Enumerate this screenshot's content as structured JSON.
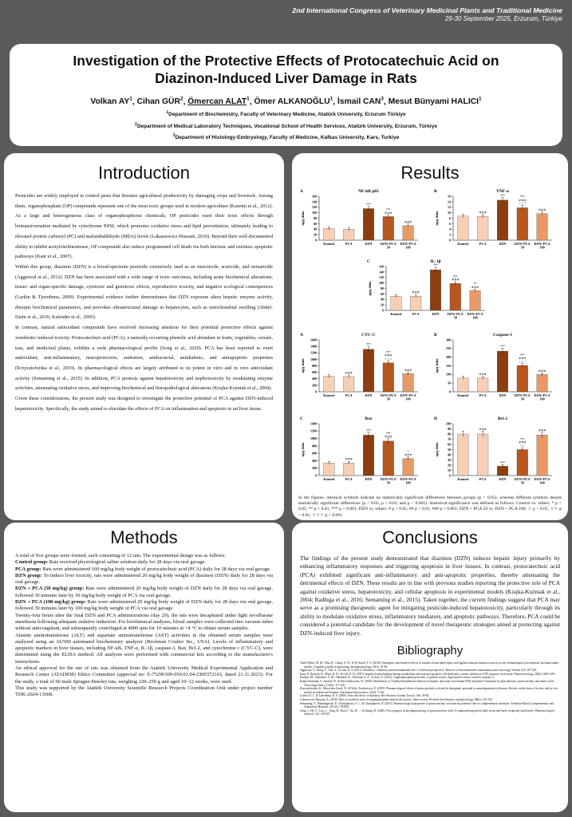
{
  "banner": {
    "line1": "2nd International Congress of Veterinary Medicinal Plants and Traditional Medicine",
    "line2": "29-30 September 2025, Erzurum, Türkiye"
  },
  "title": {
    "line1": "Investigation of the Protective Effects of Protocatechuic Acid on",
    "line2": "Diazinon-Induced Liver Damage in Rats"
  },
  "authors": [
    {
      "name": "Volkan AY",
      "sup": "1",
      "underline": false
    },
    {
      "name": "Cihan GÜR",
      "sup": "2",
      "underline": false
    },
    {
      "name": "Ömercan ALAT",
      "sup": "1",
      "underline": true
    },
    {
      "name": "Ömer ALKANOĞLU",
      "sup": "1",
      "underline": false
    },
    {
      "name": "İsmail CAN",
      "sup": "3",
      "underline": false
    },
    {
      "name": "Mesut Bünyami HALICI",
      "sup": "1",
      "underline": false
    }
  ],
  "affiliations": [
    {
      "sup": "1",
      "text": "Department of Biochemistry, Faculty of Veterinary Medicine, Atatürk University, Erzurum Türkiye"
    },
    {
      "sup": "2",
      "text": "Department of Medical Laboratory Techniques, Vocational School of Health Services, Atatürk University, Erzurum, Türkiye"
    },
    {
      "sup": "3",
      "text": "Department of Histology-Embryology, Faculty of Medicine, Kafkas University, Kars, Turkiye"
    }
  ],
  "introduction": {
    "heading": "Introduction",
    "paragraphs": [
      "Pesticides are widely employed to control pests that threaten agricultural productivity by damaging crops and livestock. Among them, organophosphate (OP) compounds represent one of the most toxic groups used in modern agriculture (Kazemi et al., 2012). As a large and heterogeneous class of organophosphorus chemicals, OP pesticides exert their toxic effects through biotransformation mediated by cytochrome P450, which promotes oxidative stress and lipid peroxidation, ultimately leading to elevated protein carbonyl (PC) and malondialdehyde (MDA) levels (Lukaszewicz-Hussain, 2010). Beyond their well-documented ability to inhibit acetylcholinesterase, OP compounds also induce programmed cell death via both intrinsic and extrinsic apoptotic pathways (Kaur et al., 2007).",
      "Within this group, diazinon (DZN) is a broad-spectrum pesticide extensively used as an insecticide, acaricide, and nematicide (Aggarwal et al., 2012). DZN has been associated with a wide range of toxic outcomes, including acute biochemical alterations, tissue- and organ-specific damage, cytotoxic and genotoxic effects, reproductive toxicity, and negative ecological consequences (Larkin & Tjeerdema, 2000). Experimental evidence further demonstrates that DZN exposure alters hepatic enzyme activity, disrupts biochemical parameters, and provokes ultrastructural damage in hepatocytes, such as mitochondrial swelling (Abdel-Daim et al., 2016; Kalender et al., 2005).",
      "In contrast, natural antioxidant compounds have received increasing attention for their potential protective effects against xenobiotic-induced toxicity. Protocatechuic acid (PCA), a naturally occurring phenolic acid abundant in fruits, vegetables, cereals, teas, and medicinal plants, exhibits a wide pharmacological profile (Song et al., 2020). PCA has been reported to exert antioxidant, anti-inflammatory, neuroprotective, antitumor, antibacterial, antidiabetic, and antiapoptotic properties (Krzysztoforska et al., 2019). Its pharmacological effects are largely attributed to its potent in vitro and in vivo antioxidant activity (Semaming et al., 2015). In addition, PCA protects against hepatotoxicity and nephrotoxicity by modulating enzyme activities, attenuating oxidative stress, and improving biochemical and histopathological alterations (Krajka-Kuźniak et al., 2004).",
      "Given these considerations, the present study was designed to investigate the protective potential of PCA against DZN-induced hepatotoxicity. Specifically, the study aimed to elucidate the effects of PCA on inflammation and apoptosis in rat liver tissue."
    ]
  },
  "methods": {
    "heading": "Methods",
    "intro": "A total of five groups were formed, each consisting of 12 rats. The experimental design was as follows:",
    "groups": [
      {
        "label": "Control group:",
        "text": "Rats received physiological saline solution daily for 28 days via oral gavage."
      },
      {
        "label": "PCA group:",
        "text": "Rats were administered 100 mg/kg body weight of protocatechuic acid (PCA) daily for 28 days via oral gavage."
      },
      {
        "label": "DZN group:",
        "text": "To induce liver toxicity, rats were administered 20 mg/kg body weight of diazinon (DZN) daily for 28 days via oral gavage."
      },
      {
        "label": "DZN + PCA (50 mg/kg) group:",
        "text": "Rats were administered 20 mg/kg body weight of DZN daily for 28 days via oral gavage, followed 30 minutes later by 50 mg/kg body weight of PCA via oral gavage."
      },
      {
        "label": "DZN + PCA (100 mg/kg) group:",
        "text": "Rats were administered 20 mg/kg body weight of DZN daily for 28 days via oral gavage, followed 30 minutes later by 100 mg/kg body weight of PCA via oral gavage."
      }
    ],
    "paragraphs": [
      "Twenty-four hours after the final DZN and PCA administrations (day 29), the rats were decapitated under light sevoflurane anesthesia following adequate sedative induction. For biochemical analyses, blood samples were collected into vacuum tubes without anticoagulant, and subsequently centrifuged at 4000 rpm for 10 minutes at +4 °C to obtain serum samples.",
      "Alanine aminotransferase (ALT) and aspartate aminotransferase (AST) activities in the obtained serum samples were analyzed using an AU500 automated biochemistry analyzer (Beckman Coulter Inc., USA). Levels of inflammatory and apoptotic markers in liver tissues, including NF-κB, TNF-α, IL-1β, caspase-3, Bax, Bcl-2, and cytochrome c (CYC-C), were determined using the ELISA method. All analyses were performed with commercial kits according to the manufacturer's instructions.",
      "An ethical approval for the use of rats was obtained from the Atatürk University Medical Experimental Application and Research Center (ATADEM) Ethics Committee (approval no: E-75296309-050.01.04-2300372163, dated 21.11.2023). For the study, a total of 60 male Sprague-Dawley rats, weighing 220–250 g and aged 10–12 weeks, were used.",
      "This study was supported by the Atatürk University Scientific Research Projects Coordination Unit under project number TDK-2024-13608."
    ]
  },
  "results": {
    "heading": "Results",
    "note": "In the figures, identical symbols indicate no statistically significant differences between groups (p > 0.05), whereas different symbols denote statistically significant differences (p < 0.05, p < 0.01, and p < 0.001). Statistical significance was defined as follows: Control vs. others: * p < 0.05, ** p < 0.01, *** p < 0.001; DZN vs. others: # p < 0.05, ## p < 0.01, ### p < 0.001; DZN + PCA 50 vs. DZN + PCA 100: ☆ p < 0.05, ☆☆ p < 0.01, ☆☆☆ p < 0.001."
  },
  "chart_data": [
    {
      "type": "bar",
      "panel": "A",
      "title": "NF-kB p65",
      "ylabel": "ng/g doku",
      "ylim": [
        0,
        160
      ],
      "yticks": [
        0,
        20,
        40,
        60,
        80,
        100,
        120,
        140,
        160
      ],
      "categories": [
        "Kontrol",
        "PCA",
        "DZN",
        "DZN+PCA 50",
        "DZN+PCA 100"
      ],
      "values": [
        43,
        40,
        115,
        86,
        53
      ],
      "annotations": [
        "",
        "",
        "***",
        "***\n###",
        "###"
      ]
    },
    {
      "type": "bar",
      "panel": "B",
      "title": "TNF-α",
      "ylabel": "ng/g doku",
      "ylim": [
        0,
        16
      ],
      "yticks": [
        0,
        2,
        4,
        6,
        8,
        10,
        12,
        14,
        16
      ],
      "categories": [
        "Kontrol",
        "PCA",
        "DZN",
        "DZN+PCA 50",
        "DZN+PCA 100"
      ],
      "values": [
        8.8,
        8.7,
        14.6,
        11.8,
        9.7
      ],
      "annotations": [
        "",
        "###",
        "***",
        "***\n###\n☆☆☆",
        "###"
      ]
    },
    {
      "type": "bar",
      "panel": "C",
      "title": "IL-1β",
      "ylabel": "pg/g doku",
      "ylim": [
        0,
        160
      ],
      "yticks": [
        0,
        20,
        40,
        60,
        80,
        100,
        120,
        140,
        160
      ],
      "categories": [
        "Kontrol",
        "PCA",
        "DZN",
        "DZN+PCA 50",
        "DZN+PCA 100"
      ],
      "values": [
        52,
        52,
        148,
        98,
        72
      ],
      "annotations": [
        "",
        "###",
        "***",
        "***\n###",
        "**\n###"
      ]
    },
    {
      "type": "bar",
      "panel": "A",
      "title": "CYC-C",
      "ylabel": "ng/g doku",
      "ylim": [
        0,
        1600
      ],
      "yticks": [
        0,
        200,
        400,
        600,
        800,
        1000,
        1200,
        1400,
        1600
      ],
      "categories": [
        "Kontrol",
        "PCA",
        "DZN",
        "DZN+PCA 50",
        "DZN+PCA 100"
      ],
      "values": [
        480,
        470,
        1310,
        890,
        560
      ],
      "annotations": [
        "",
        "###",
        "***",
        "***\n###\n☆☆☆",
        "###"
      ]
    },
    {
      "type": "bar",
      "panel": "B",
      "title": "Caspase-3",
      "ylabel": "ng/g doku",
      "ylim": [
        0,
        300
      ],
      "yticks": [
        0,
        50,
        100,
        150,
        200,
        250,
        300
      ],
      "categories": [
        "Kontrol",
        "PCA",
        "DZN",
        "DZN+PCA 50",
        "DZN+PCA 100"
      ],
      "values": [
        80,
        80,
        235,
        152,
        100
      ],
      "annotations": [
        "",
        "###",
        "***",
        "***\n###\n☆☆☆",
        "###"
      ]
    },
    {
      "type": "bar",
      "panel": "C",
      "title": "Bax",
      "ylabel": "ng/g doku",
      "ylim": [
        0,
        1400
      ],
      "yticks": [
        0,
        200,
        400,
        600,
        800,
        1000,
        1200,
        1400
      ],
      "categories": [
        "Kontrol",
        "PCA",
        "DZN",
        "DZN+PCA 50",
        "DZN+PCA 100"
      ],
      "values": [
        340,
        340,
        1090,
        930,
        460
      ],
      "annotations": [
        "",
        "###",
        "***",
        "***\n###",
        "*\n###"
      ]
    },
    {
      "type": "bar",
      "panel": "D",
      "title": "Bcl-2",
      "ylabel": "ng/g doku",
      "ylim": [
        0,
        100
      ],
      "yticks": [
        0,
        10,
        20,
        30,
        40,
        50,
        60,
        70,
        80,
        90,
        100
      ],
      "categories": [
        "Kontrol",
        "PCA",
        "DZN",
        "DZN+PCA 50",
        "DZN+PCA 100"
      ],
      "values": [
        80,
        80,
        18,
        50,
        78
      ],
      "annotations": [
        "",
        "###",
        "***",
        "***\n###\n☆☆",
        "###"
      ]
    }
  ],
  "colors": {
    "bars": [
      "#f6cfb4",
      "#f6cfb4",
      "#8b3f10",
      "#b7561f",
      "#e79a67"
    ],
    "page_bg": "#5b5b5b"
  },
  "conclusions": {
    "heading": "Conclusions",
    "text": "The findings of the present study demonstrated that diazinon (DZN) induces hepatic injury primarily by enhancing inflammatory responses and triggering apoptosis in liver tissues. In contrast, protocatechuic acid (PCA) exhibited significant anti-inflammatory and anti-apoptotic properties, thereby attenuating the detrimental effects of DZN. These results are in line with previous studies reporting the protective role of PCA against oxidative stress, hepatotoxicity, and cellular apoptosis in experimental models (Krajka-Kuźniak et al., 2004; Radhiga et al., 2016; Semaming et al., 2015). Taken together, the current findings suggest that PCA may serve as a promising therapeutic agent for mitigating pesticide-induced hepatotoxicity, particularly through its ability to modulate oxidative stress, inflammatory mediators, and apoptotic pathways. Therefore, PCA could be considered a potential candidate for the development of novel therapeutic strategies aimed at protecting against DZN-induced liver injury."
  },
  "bibliography": {
    "heading": "Bibliography",
    "refs": [
      "Abdel-Daim, M. M., Taha, R., Ghazy, E. W., & El-Sayed, Y. S. (2016). Synergistic ameliorative effects of sesame oil and alpha-lipoic acid against subacute diazinon toxicity in rats: hematological, biochemical, and antioxidant studies. Canadian journal of physiology and pharmacology, 94(1), 81-88.",
      "Aggarwal, V., Deng, X., Tuli, A., & Goh, K. S. (2012). Diazinon—chemistry and environmental fate: a California perspective. Reviews of environmental contamination and toxicology Volume 223, 107-140.",
      "Kaur, P., Radotra, B., Minz, R. W., & Gill, K. D. (2007). Impaired mitochondrial energy metabolism and neuronal apoptotic cell death after chronic dichlorvos (OP) exposure in rat brain. Neurotoxicology, 28(6), 1208-1219.",
      "Kazemi, M., Tahmasbi, A. M., Valizadeh, R., Naserian, A. A., & Soni, A. (2012). Organophosphate pesticides: A general review. Agricultural science research journals, 2.",
      "Krajka-Kuźniak, V., Szaefer, H., & Baer-Dubowska, W. (2004). Modulation of 3-methylcholanthrene-induced rat hepatic and renal cytochrome P450 and phase II enzymes by plant phenols: protocatechuic and tannic acids. Toxicology letters, 152(2), 117-126.",
      "Krzysztoforska, K., Mirowska-Guzel, D., & Widy-Tyszkiewicz, E. (2019). Pharmacological effects of protocatechuic acid and its therapeutic potential in neurodegenerative diseases: Review on the basis of in vitro and in vivo studies in rodents and humans. Nutritional neuroscience, 22(2), 72-82.",
      "Larkin, D. J., & Tjeerdema, R. S. (2000). Fate and effects of diazinon. Rev Environ Contam Toxicol, 166, 49-82.",
      "Lukaszewicz-Hussain, A. (2010). Role of oxidative stress in organophosphate insecticide toxicity–Short review. Pesticide biochemistry and physiology, 98(2), 145-150.",
      "Semaming, Y., Pannengpetch, P., Chattipakorn, S. C., & Chattipakorn, N. (2015). Pharmacological properties of protocatechuic acid and its potential roles as complementary medicine. Evidence-Based Complementary and Alternative Medicine, 2015(1), 593902.",
      "Song, J., He, Y., Luo, C., Feng, B., Ran, F., Xu, H., ... & Zhang, D. (2020). New progress in the pharmacology of protocatechuic acid: A compound ingested in daily foods and herbs frequently and heavily. Pharmacological research, 161, 105109."
    ]
  }
}
